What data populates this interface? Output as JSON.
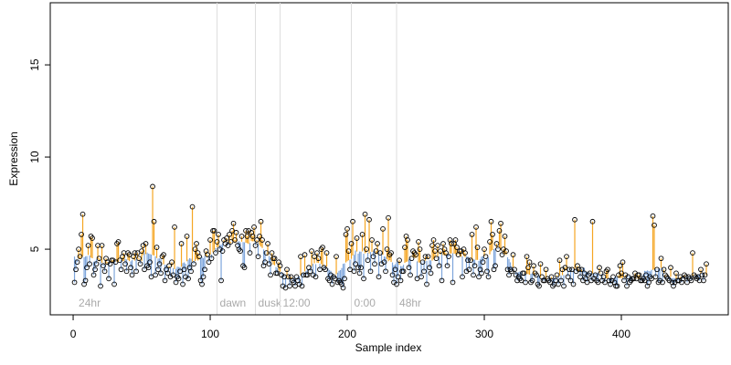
{
  "chart_data": {
    "type": "residual-scatter",
    "xlabel": "Sample index",
    "ylabel": "Expression",
    "xlim": [
      -16.7,
      478
    ],
    "ylim": [
      1.44,
      18.37
    ],
    "xticks": [
      0,
      100,
      200,
      300,
      400
    ],
    "yticks": [
      5,
      10,
      15
    ],
    "point_color": "#000000",
    "above_color": "#f5a623",
    "below_color": "#7ea6dc",
    "vline_color": "#dddddd",
    "markers": [
      {
        "label": "24hr",
        "x": 2,
        "line": false
      },
      {
        "label": "dawn",
        "x": 105,
        "line": true
      },
      {
        "label": "dusk",
        "x": 133,
        "line": true
      },
      {
        "label": "12:00",
        "x": 151,
        "line": true
      },
      {
        "label": "0:00",
        "x": 203,
        "line": true
      },
      {
        "label": "48hr",
        "x": 236,
        "line": true
      }
    ],
    "values": [
      3.2,
      3.9,
      4.3,
      5.0,
      4.6,
      5.8,
      6.9,
      3.1,
      3.3,
      4.0,
      5.2,
      4.2,
      5.7,
      5.6,
      3.6,
      3.9,
      4.2,
      5.2,
      4.5,
      3.0,
      5.2,
      4.1,
      3.8,
      4.5,
      4.3,
      3.4,
      4.2,
      4.4,
      4.4,
      3.1,
      4.3,
      5.3,
      5.4,
      4.4,
      3.9,
      4.6,
      4.8,
      4.2,
      3.8,
      4.8,
      4.7,
      4.0,
      3.6,
      4.6,
      4.8,
      3.8,
      4.8,
      4.5,
      4.2,
      4.9,
      5.2,
      3.9,
      5.3,
      4.1,
      4.0,
      4.3,
      3.5,
      8.4,
      6.5,
      3.6,
      5.1,
      3.9,
      4.2,
      3.7,
      4.6,
      4.7,
      3.3,
      3.9,
      3.7,
      4.1,
      3.5,
      4.3,
      3.6,
      6.2,
      3.2,
      3.5,
      3.4,
      3.8,
      5.3,
      3.1,
      3.9,
      3.5,
      5.7,
      3.4,
      4.0,
      3.8,
      7.3,
      4.2,
      5.0,
      5.3,
      4.8,
      4.6,
      3.3,
      3.1,
      3.5,
      3.9,
      4.9,
      4.7,
      4.3,
      5.5,
      4.5,
      6.0,
      6.0,
      4.8,
      5.4,
      5.8,
      5.0,
      3.3,
      4.9,
      5.5,
      5.3,
      5.6,
      5.2,
      5.8,
      5.4,
      6.0,
      6.4,
      5.5,
      5.9,
      5.2,
      5.0,
      4.9,
      5.7,
      4.1,
      4.0,
      6.0,
      5.7,
      6.0,
      4.8,
      5.9,
      5.7,
      6.2,
      5.2,
      5.5,
      4.6,
      5.7,
      6.5,
      5.5,
      4.1,
      4.3,
      4.8,
      5.3,
      4.2,
      3.6,
      4.8,
      4.5,
      4.5,
      3.7,
      3.7,
      4.3,
      4.1,
      3.6,
      3.0,
      3.5,
      2.9,
      3.9,
      3.5,
      3.0,
      3.5,
      3.3,
      3.2,
      3.0,
      3.5,
      3.3,
      3.1,
      4.6,
      3.0,
      3.6,
      4.7,
      3.6,
      3.6,
      4.0,
      3.8,
      4.9,
      3.6,
      4.6,
      3.5,
      4.8,
      4.5,
      3.9,
      5.0,
      5.1,
      4.0,
      3.9,
      4.8,
      3.4,
      3.3,
      3.6,
      3.1,
      3.5,
      3.4,
      4.6,
      3.2,
      3.3,
      3.2,
      3.1,
      2.9,
      3.4,
      5.8,
      6.1,
      4.9,
      3.9,
      5.3,
      6.5,
      3.8,
      4.2,
      5.6,
      4.0,
      3.7,
      4.0,
      5.8,
      3.4,
      6.9,
      5.0,
      4.4,
      6.6,
      3.8,
      5.5,
      4.6,
      4.2,
      4.9,
      5.3,
      3.5,
      4.8,
      4.2,
      6.1,
      4.3,
      3.8,
      5.0,
      6.7,
      4.7,
      4.8,
      3.6,
      3.2,
      3.9,
      3.1,
      3.5,
      4.4,
      3.3,
      3.8,
      3.8,
      5.1,
      5.7,
      5.5,
      4.0,
      3.6,
      4.5,
      4.9,
      4.8,
      4.7,
      3.4,
      5.4,
      5.0,
      3.5,
      4.3,
      3.8,
      4.6,
      3.1,
      4.6,
      4.0,
      3.7,
      5.2,
      5.5,
      4.9,
      4.5,
      5.2,
      4.1,
      4.9,
      3.3,
      5.3,
      5.0,
      4.8,
      4.1,
      4.6,
      5.5,
      5.3,
      3.2,
      5.3,
      5.5,
      5.1,
      4.7,
      4.9,
      4.9,
      3.5,
      5.0,
      4.8,
      3.8,
      4.4,
      3.9,
      4.4,
      5.8,
      3.6,
      4.1,
      6.2,
      5.1,
      3.5,
      3.9,
      3.7,
      4.3,
      5.0,
      4.6,
      3.8,
      3.5,
      5.4,
      6.5,
      5.8,
      3.9,
      4.1,
      5.3,
      5.0,
      6.0,
      6.4,
      4.7,
      5.0,
      5.7,
      4.9,
      3.9,
      3.6,
      3.9,
      3.8,
      4.7,
      3.9,
      3.6,
      3.3,
      3.5,
      3.4,
      3.3,
      3.7,
      3.7,
      3.2,
      4.6,
      4.0,
      4.3,
      3.2,
      3.3,
      4.1,
      3.7,
      3.6,
      3.1,
      3.0,
      4.2,
      3.5,
      3.3,
      3.3,
      3.9,
      3.4,
      3.3,
      3.2,
      3.5,
      3.0,
      3.1,
      3.3,
      3.6,
      3.1,
      4.4,
      3.3,
      3.9,
      3.0,
      4.0,
      4.6,
      3.5,
      3.9,
      3.3,
      3.9,
      3.1,
      6.6,
      3.8,
      4.1,
      3.9,
      3.5,
      3.9,
      3.3,
      3.7,
      3.4,
      3.2,
      3.6,
      3.7,
      3.3,
      6.5,
      3.4,
      3.6,
      3.3,
      3.2,
      4.0,
      3.7,
      3.3,
      3.5,
      3.2,
      3.8,
      3.9,
      3.3,
      3.1,
      3.3,
      3.5,
      3.2,
      3.0,
      3.0,
      3.6,
      4.1,
      3.7,
      4.3,
      3.3,
      3.6,
      3.0,
      3.5,
      3.2,
      3.3,
      3.4,
      3.4,
      3.7,
      3.4,
      3.6,
      3.6,
      3.3,
      3.3,
      3.4,
      3.3,
      3.6,
      3.0,
      3.2,
      3.5,
      3.4,
      6.8,
      6.3,
      3.5,
      3.9,
      3.2,
      3.3,
      4.5,
      3.2,
      3.9,
      3.6,
      3.5,
      3.4,
      3.3,
      4.0,
      3.2,
      3.0,
      3.2,
      3.7,
      3.3,
      3.3,
      3.5,
      3.2,
      3.4,
      3.6,
      3.5,
      3.2,
      3.5,
      3.4,
      3.3,
      4.8,
      3.6,
      3.5,
      3.4,
      3.5,
      3.3,
      3.9,
      3.6,
      3.3,
      3.6,
      4.2
    ]
  }
}
